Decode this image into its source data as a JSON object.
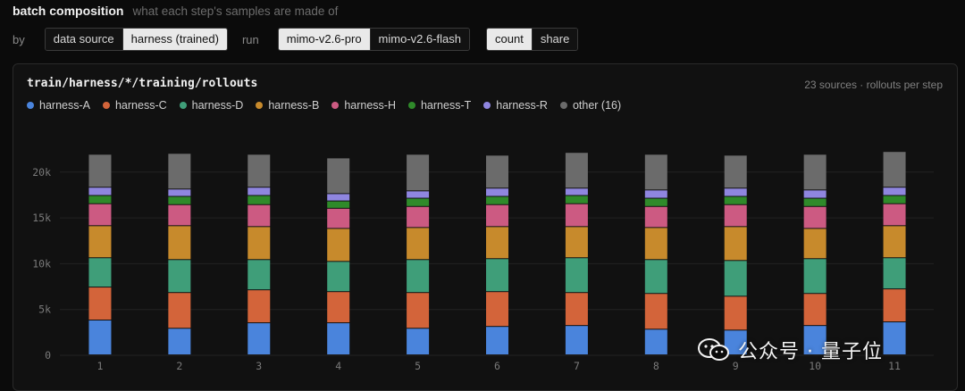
{
  "header": {
    "title": "batch composition",
    "subtitle": "what each step's samples are made of"
  },
  "controls": {
    "by_label": "by",
    "by_options": [
      "data source",
      "harness (trained)"
    ],
    "by_active": 1,
    "run_label": "run",
    "run_options": [
      "mimo-v2.6-pro",
      "mimo-v2.6-flash"
    ],
    "run_active": 0,
    "mode_options": [
      "count",
      "share"
    ],
    "mode_active": 0
  },
  "panel": {
    "title": "train/harness/*/training/rollouts",
    "meta": "23 sources · rollouts per step"
  },
  "watermark": {
    "text": "公众号 · 量子位"
  },
  "chart_data": {
    "type": "bar",
    "stacked": true,
    "categories": [
      "1",
      "2",
      "3",
      "4",
      "5",
      "6",
      "7",
      "8",
      "9",
      "10",
      "11"
    ],
    "ylim": [
      0,
      23000
    ],
    "yticks": [
      0,
      5000,
      10000,
      15000,
      20000
    ],
    "ytick_labels": [
      "0",
      "5k",
      "10k",
      "15k",
      "20k"
    ],
    "grid": true,
    "legend_position": "top-left",
    "series": [
      {
        "name": "harness-A",
        "color": "#4a84dc",
        "values": [
          3800,
          2900,
          3500,
          3500,
          2900,
          3100,
          3200,
          2800,
          2700,
          3200,
          3600
        ]
      },
      {
        "name": "harness-C",
        "color": "#d3643a",
        "values": [
          3600,
          3900,
          3600,
          3400,
          3900,
          3800,
          3600,
          3900,
          3700,
          3500,
          3600
        ]
      },
      {
        "name": "harness-D",
        "color": "#3f9e79",
        "values": [
          3200,
          3600,
          3300,
          3300,
          3600,
          3600,
          3800,
          3700,
          3900,
          3800,
          3400
        ]
      },
      {
        "name": "harness-B",
        "color": "#c78a2c",
        "values": [
          3500,
          3700,
          3600,
          3600,
          3500,
          3500,
          3400,
          3500,
          3700,
          3300,
          3500
        ]
      },
      {
        "name": "harness-H",
        "color": "#cc5a82",
        "values": [
          2400,
          2300,
          2400,
          2200,
          2300,
          2400,
          2500,
          2300,
          2400,
          2400,
          2400
        ]
      },
      {
        "name": "harness-T",
        "color": "#2f8a2a",
        "values": [
          900,
          900,
          1000,
          800,
          900,
          900,
          900,
          900,
          900,
          900,
          900
        ]
      },
      {
        "name": "harness-R",
        "color": "#8f86e0",
        "values": [
          900,
          800,
          900,
          800,
          800,
          900,
          800,
          900,
          900,
          900,
          900
        ]
      },
      {
        "name": "other (16)",
        "color": "#6b6b6b",
        "values": [
          3600,
          3900,
          3600,
          3900,
          4000,
          3600,
          3900,
          3900,
          3600,
          3900,
          3900
        ]
      }
    ]
  }
}
